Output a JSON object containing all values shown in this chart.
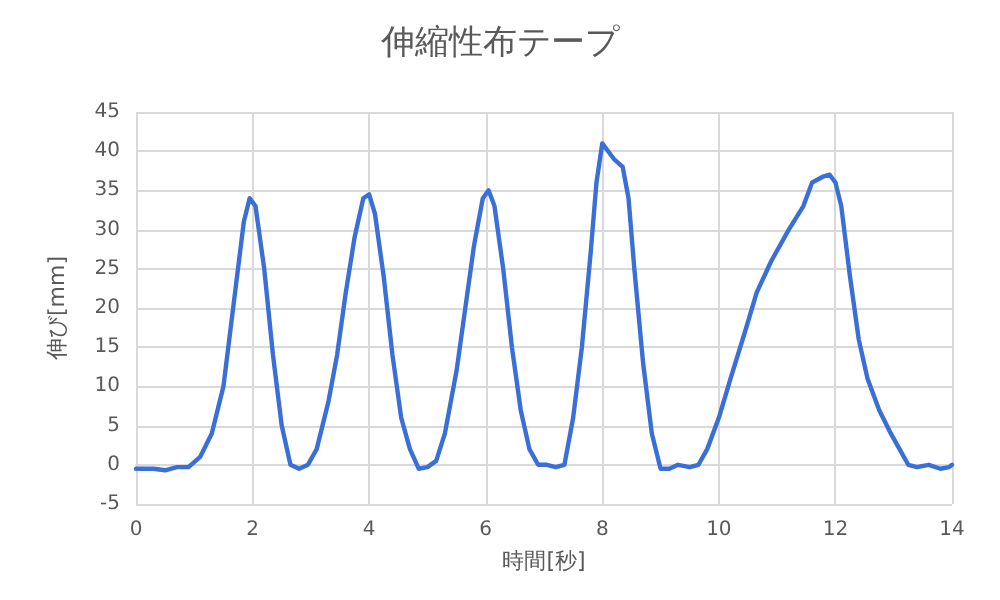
{
  "chart_data": {
    "type": "line",
    "title": "伸縮性布テープ",
    "xlabel": "時間[秒]",
    "ylabel": "伸び[mm]",
    "xlim": [
      0,
      14
    ],
    "xticks": [
      0,
      2,
      4,
      6,
      8,
      10,
      12,
      14
    ],
    "ylim": [
      -5,
      45
    ],
    "yticks": [
      -5,
      0,
      5,
      10,
      15,
      20,
      25,
      30,
      35,
      40,
      45
    ],
    "grid": true,
    "marker": "none",
    "line_style": "solid",
    "series": [
      {
        "color": "#3a6fd8",
        "x": [
          0,
          0.3,
          0.5,
          0.7,
          0.9,
          1.1,
          1.3,
          1.5,
          1.7,
          1.85,
          1.95,
          2.05,
          2.2,
          2.35,
          2.5,
          2.65,
          2.8,
          2.95,
          3.1,
          3.3,
          3.45,
          3.6,
          3.75,
          3.9,
          4.0,
          4.1,
          4.25,
          4.4,
          4.55,
          4.7,
          4.85,
          5.0,
          5.15,
          5.3,
          5.5,
          5.65,
          5.8,
          5.95,
          6.05,
          6.15,
          6.3,
          6.45,
          6.6,
          6.75,
          6.9,
          7.05,
          7.2,
          7.35,
          7.5,
          7.65,
          7.8,
          7.9,
          8.0,
          8.1,
          8.2,
          8.35,
          8.45,
          8.55,
          8.7,
          8.85,
          9.0,
          9.15,
          9.3,
          9.5,
          9.65,
          9.8,
          10.0,
          10.2,
          10.45,
          10.65,
          10.9,
          11.2,
          11.45,
          11.6,
          11.8,
          11.9,
          12.0,
          12.1,
          12.25,
          12.4,
          12.55,
          12.75,
          12.95,
          13.1,
          13.25,
          13.4,
          13.6,
          13.8,
          13.95,
          14
        ],
        "values": [
          -0.5,
          -0.5,
          -0.7,
          -0.3,
          -0.3,
          1,
          4,
          10,
          22,
          31,
          34,
          33,
          25,
          14,
          5,
          0,
          -0.5,
          0,
          2,
          8,
          14,
          22,
          29,
          34,
          34.5,
          32,
          24,
          14,
          6,
          2,
          -0.5,
          -0.3,
          0.5,
          4,
          12,
          20,
          28,
          34,
          35,
          33,
          25,
          15,
          7,
          2,
          0,
          0,
          -0.3,
          0,
          6,
          15,
          27,
          36,
          41,
          40,
          39,
          38,
          34,
          25,
          13,
          4,
          -0.5,
          -0.5,
          0,
          -0.3,
          0,
          2,
          6,
          11,
          17,
          22,
          26,
          30,
          33,
          36,
          36.8,
          37,
          36,
          33,
          24,
          16,
          11,
          7,
          4,
          2,
          0,
          -0.3,
          0,
          -0.5,
          -0.3,
          0
        ]
      }
    ]
  }
}
